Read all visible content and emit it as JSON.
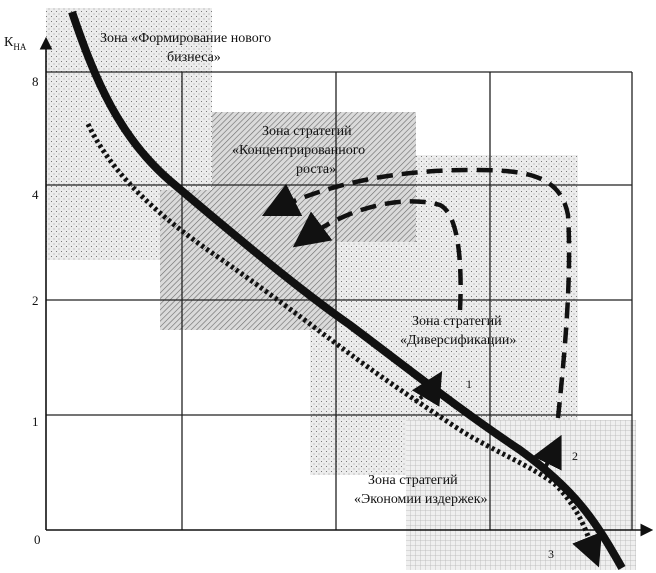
{
  "axis": {
    "y_label": "К",
    "y_label_sub": "НА",
    "y_ticks": [
      "8",
      "4",
      "2",
      "1",
      "0"
    ]
  },
  "zones": {
    "new_business": [
      "Зона «Формирование нового",
      "бизнеса»"
    ],
    "concentrated": [
      "Зона стратегий",
      "«Концентрированного",
      "роста»"
    ],
    "diversification": [
      "Зона стратегий",
      "«Диверсификации»"
    ],
    "cost_economy": [
      "Зона стратегий",
      "«Экономии издержек»"
    ]
  },
  "path_labels": [
    "1",
    "2",
    "3"
  ],
  "colors": {
    "ink": "#111111",
    "grid": "#222222"
  }
}
